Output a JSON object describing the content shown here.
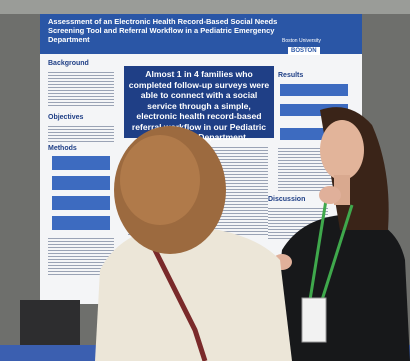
{
  "poster": {
    "title": "Assessment of an Electronic Health Record-Based Social Needs Screening Tool and Referral Workflow in a Pediatric Emergency Department",
    "institution": "Boston University",
    "logo": "BOSTON",
    "highlight": "Almost 1 in 4 families who completed follow-up surveys were able to connect with a social service through a simple, electronic health record-based referral workflow in our Pediatric Emergency Department.",
    "sections": [
      "Background",
      "Objectives",
      "Methods",
      "Results",
      "Discussion"
    ]
  }
}
